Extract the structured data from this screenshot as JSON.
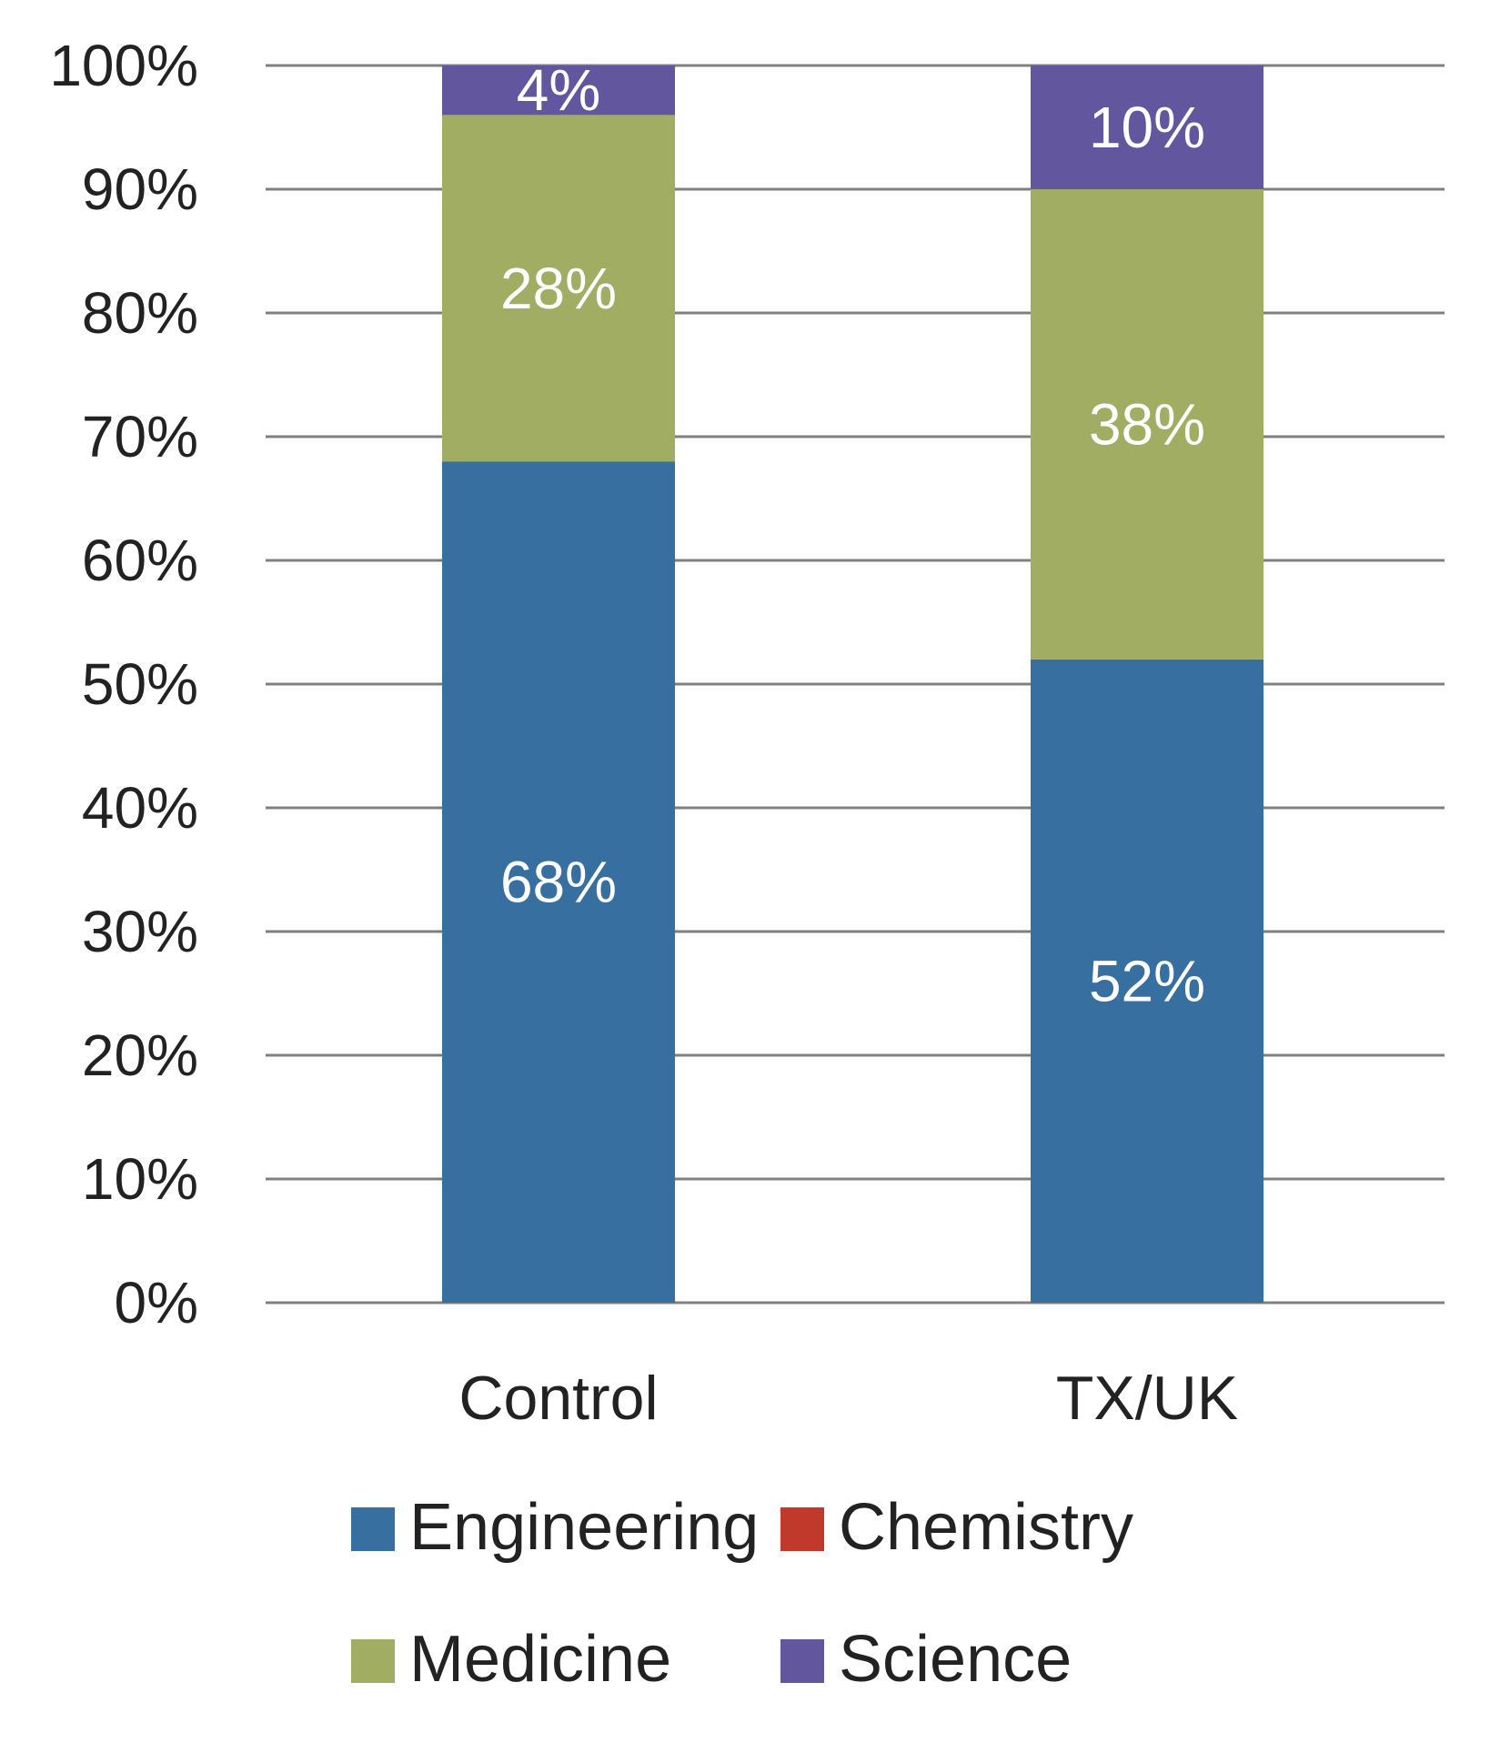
{
  "chart_data": {
    "type": "bar",
    "stacked": true,
    "title": "",
    "xlabel": "",
    "ylabel": "",
    "ylim": [
      0,
      100
    ],
    "yticks": [
      "0%",
      "10%",
      "20%",
      "30%",
      "40%",
      "50%",
      "60%",
      "70%",
      "80%",
      "90%",
      "100%"
    ],
    "categories": [
      "Control",
      "TX/UK"
    ],
    "series": [
      {
        "name": "Engineering",
        "color": "#366FA0",
        "values": [
          68,
          52
        ],
        "labels": [
          "68%",
          "52%"
        ]
      },
      {
        "name": "Chemistry",
        "color": "#C0392B",
        "values": [
          0,
          0
        ],
        "labels": [
          "",
          ""
        ]
      },
      {
        "name": "Medicine",
        "color": "#A0AD62",
        "values": [
          28,
          38
        ],
        "labels": [
          "28%",
          "38%"
        ]
      },
      {
        "name": "Science",
        "color": "#62569F",
        "values": [
          4,
          10
        ],
        "labels": [
          "4%",
          "10%"
        ]
      }
    ],
    "grid": true,
    "legend_position": "bottom"
  }
}
